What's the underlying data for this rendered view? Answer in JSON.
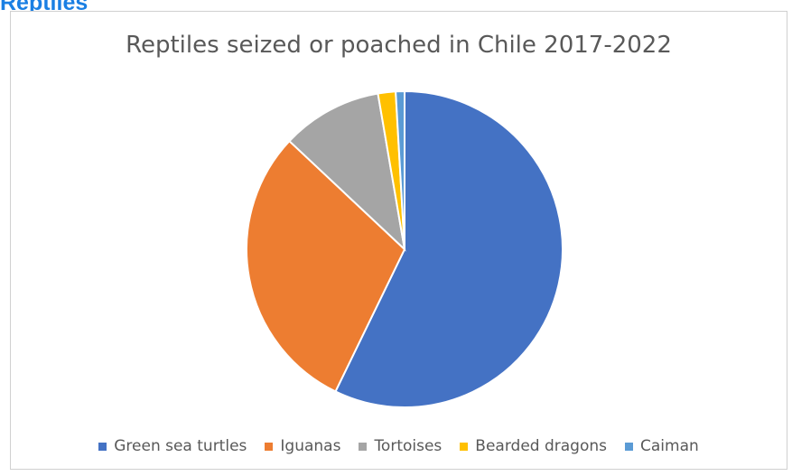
{
  "section_heading": "Reptiles",
  "chart_data": {
    "type": "pie",
    "title": "Reptiles seized or poached in Chile 2017-2022",
    "categories": [
      "Green sea turtles",
      "Iguanas",
      "Tortoises",
      "Bearded dragons",
      "Caiman"
    ],
    "values": [
      57.2,
      29.8,
      10.3,
      1.8,
      0.9
    ],
    "colors": [
      "#4472c4",
      "#ed7d31",
      "#a5a5a5",
      "#ffc000",
      "#5b9bd5"
    ],
    "legend_position": "bottom"
  }
}
